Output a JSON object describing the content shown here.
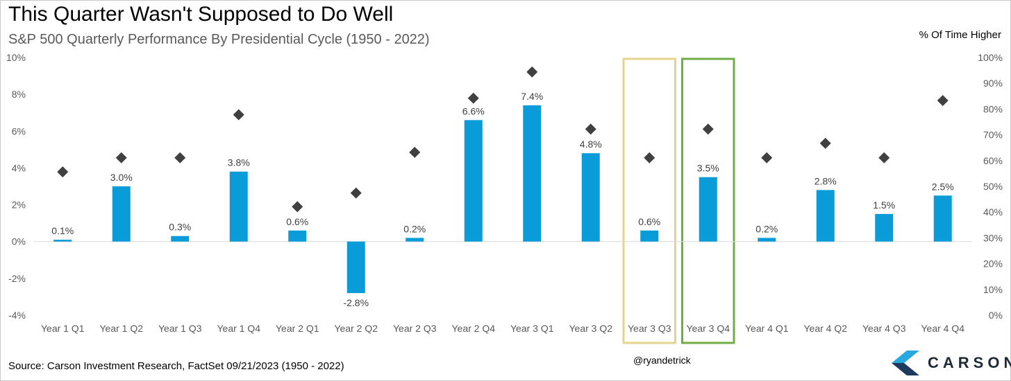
{
  "title": "This Quarter Wasn't Supposed to Do Well",
  "subtitle": "S&P 500 Quarterly Performance By Presidential Cycle (1950 - 2022)",
  "source": "Source: Carson Investment Research, FactSet 09/21/2023 (1950 - 2022)",
  "handle": "@ryandetrick",
  "logo": {
    "text": "CARSON",
    "icon": "carson-chevron-logo"
  },
  "colors": {
    "bar": "#0a9bd9",
    "marker": "#404040",
    "highlight_year3_q3": "#e6d38c",
    "highlight_year3_q4": "#70ad47"
  },
  "chart_data": {
    "type": "bar",
    "categories": [
      "Year 1 Q1",
      "Year 1 Q2",
      "Year 1 Q3",
      "Year 1 Q4",
      "Year 2 Q1",
      "Year 2 Q2",
      "Year 2 Q3",
      "Year 2 Q4",
      "Year 3 Q1",
      "Year 3 Q2",
      "Year 3 Q3",
      "Year 3 Q4",
      "Year 4 Q1",
      "Year 4 Q2",
      "Year 4 Q3",
      "Year 4 Q4"
    ],
    "series": [
      {
        "type": "bar",
        "axis": "left",
        "values": [
          0.1,
          3.0,
          0.3,
          3.8,
          0.6,
          -2.8,
          0.2,
          6.6,
          7.4,
          4.8,
          0.6,
          3.5,
          0.2,
          2.8,
          1.5,
          2.5
        ],
        "labels": [
          "0.1%",
          "3.0%",
          "0.3%",
          "3.8%",
          "0.6%",
          "-2.8%",
          "0.2%",
          "6.6%",
          "7.4%",
          "4.8%",
          "0.6%",
          "3.5%",
          "0.2%",
          "2.8%",
          "1.5%",
          "2.5%"
        ]
      },
      {
        "type": "scatter",
        "axis": "right",
        "marker": "diamond",
        "values": [
          55.6,
          61.1,
          61.1,
          77.8,
          42.1,
          47.4,
          63.2,
          84.2,
          94.4,
          72.2,
          61.1,
          72.2,
          61.1,
          66.7,
          61.1,
          83.3
        ]
      }
    ],
    "y_left": {
      "ylim": [
        -4,
        10
      ],
      "ticks": [
        -4,
        -2,
        0,
        2,
        4,
        6,
        8,
        10
      ],
      "tick_labels": [
        "-4%",
        "-2%",
        "0%",
        "2%",
        "4%",
        "6%",
        "8%",
        "10%"
      ]
    },
    "y_right": {
      "title": "% Of Time Higher",
      "ylim": [
        0,
        100
      ],
      "ticks": [
        0,
        10,
        20,
        30,
        40,
        50,
        60,
        70,
        80,
        90,
        100
      ],
      "tick_labels": [
        "0%",
        "10%",
        "20%",
        "30%",
        "40%",
        "50%",
        "60%",
        "70%",
        "80%",
        "90%",
        "100%"
      ]
    },
    "highlights": [
      {
        "category": "Year 3 Q3",
        "color": "#e6d38c"
      },
      {
        "category": "Year 3 Q4",
        "color": "#70ad47"
      }
    ],
    "grid": false,
    "legend": "none"
  }
}
